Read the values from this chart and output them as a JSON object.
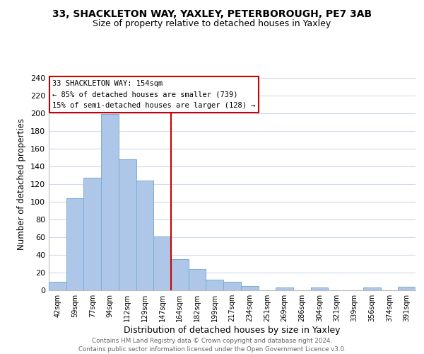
{
  "title1": "33, SHACKLETON WAY, YAXLEY, PETERBOROUGH, PE7 3AB",
  "title2": "Size of property relative to detached houses in Yaxley",
  "xlabel": "Distribution of detached houses by size in Yaxley",
  "ylabel": "Number of detached properties",
  "bar_labels": [
    "42sqm",
    "59sqm",
    "77sqm",
    "94sqm",
    "112sqm",
    "129sqm",
    "147sqm",
    "164sqm",
    "182sqm",
    "199sqm",
    "217sqm",
    "234sqm",
    "251sqm",
    "269sqm",
    "286sqm",
    "304sqm",
    "321sqm",
    "339sqm",
    "356sqm",
    "374sqm",
    "391sqm"
  ],
  "bar_values": [
    10,
    104,
    127,
    199,
    148,
    124,
    61,
    35,
    24,
    12,
    10,
    5,
    0,
    3,
    0,
    3,
    0,
    0,
    3,
    0,
    4
  ],
  "bar_color": "#aec6e8",
  "bar_edge_color": "#7aadd4",
  "vline_color": "#cc0000",
  "vline_x_idx": 7,
  "annotation_line1": "33 SHACKLETON WAY: 154sqm",
  "annotation_line2": "← 85% of detached houses are smaller (739)",
  "annotation_line3": "15% of semi-detached houses are larger (128) →",
  "ylim": [
    0,
    240
  ],
  "yticks": [
    0,
    20,
    40,
    60,
    80,
    100,
    120,
    140,
    160,
    180,
    200,
    220,
    240
  ],
  "footer1": "Contains HM Land Registry data © Crown copyright and database right 2024.",
  "footer2": "Contains public sector information licensed under the Open Government Licence v3.0.",
  "bg_color": "#ffffff",
  "grid_color": "#d0daea"
}
